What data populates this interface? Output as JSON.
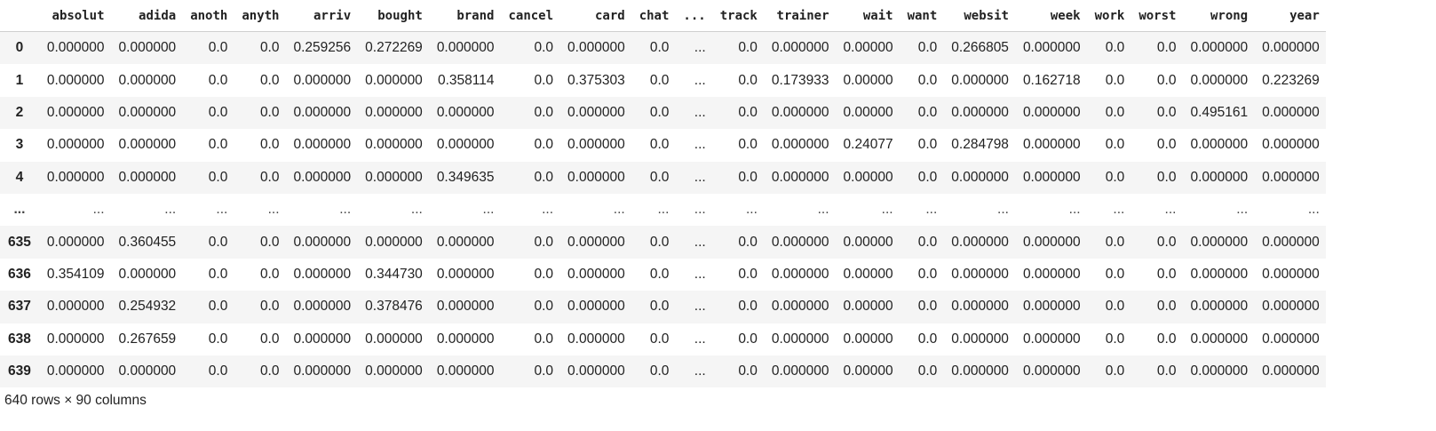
{
  "dataframe": {
    "columns": [
      "absolut",
      "adida",
      "anoth",
      "anyth",
      "arriv",
      "bought",
      "brand",
      "cancel",
      "card",
      "chat",
      "...",
      "track",
      "trainer",
      "wait",
      "want",
      "websit",
      "week",
      "work",
      "worst",
      "wrong",
      "year"
    ],
    "rows": [
      {
        "index": "0",
        "values": [
          "0.000000",
          "0.000000",
          "0.0",
          "0.0",
          "0.259256",
          "0.272269",
          "0.000000",
          "0.0",
          "0.000000",
          "0.0",
          "...",
          "0.0",
          "0.000000",
          "0.00000",
          "0.0",
          "0.266805",
          "0.000000",
          "0.0",
          "0.0",
          "0.000000",
          "0.000000"
        ]
      },
      {
        "index": "1",
        "values": [
          "0.000000",
          "0.000000",
          "0.0",
          "0.0",
          "0.000000",
          "0.000000",
          "0.358114",
          "0.0",
          "0.375303",
          "0.0",
          "...",
          "0.0",
          "0.173933",
          "0.00000",
          "0.0",
          "0.000000",
          "0.162718",
          "0.0",
          "0.0",
          "0.000000",
          "0.223269"
        ]
      },
      {
        "index": "2",
        "values": [
          "0.000000",
          "0.000000",
          "0.0",
          "0.0",
          "0.000000",
          "0.000000",
          "0.000000",
          "0.0",
          "0.000000",
          "0.0",
          "...",
          "0.0",
          "0.000000",
          "0.00000",
          "0.0",
          "0.000000",
          "0.000000",
          "0.0",
          "0.0",
          "0.495161",
          "0.000000"
        ]
      },
      {
        "index": "3",
        "values": [
          "0.000000",
          "0.000000",
          "0.0",
          "0.0",
          "0.000000",
          "0.000000",
          "0.000000",
          "0.0",
          "0.000000",
          "0.0",
          "...",
          "0.0",
          "0.000000",
          "0.24077",
          "0.0",
          "0.284798",
          "0.000000",
          "0.0",
          "0.0",
          "0.000000",
          "0.000000"
        ]
      },
      {
        "index": "4",
        "values": [
          "0.000000",
          "0.000000",
          "0.0",
          "0.0",
          "0.000000",
          "0.000000",
          "0.349635",
          "0.0",
          "0.000000",
          "0.0",
          "...",
          "0.0",
          "0.000000",
          "0.00000",
          "0.0",
          "0.000000",
          "0.000000",
          "0.0",
          "0.0",
          "0.000000",
          "0.000000"
        ]
      },
      {
        "index": "...",
        "values": [
          "...",
          "...",
          "...",
          "...",
          "...",
          "...",
          "...",
          "...",
          "...",
          "...",
          "...",
          "...",
          "...",
          "...",
          "...",
          "...",
          "...",
          "...",
          "...",
          "...",
          "..."
        ]
      },
      {
        "index": "635",
        "values": [
          "0.000000",
          "0.360455",
          "0.0",
          "0.0",
          "0.000000",
          "0.000000",
          "0.000000",
          "0.0",
          "0.000000",
          "0.0",
          "...",
          "0.0",
          "0.000000",
          "0.00000",
          "0.0",
          "0.000000",
          "0.000000",
          "0.0",
          "0.0",
          "0.000000",
          "0.000000"
        ]
      },
      {
        "index": "636",
        "values": [
          "0.354109",
          "0.000000",
          "0.0",
          "0.0",
          "0.000000",
          "0.344730",
          "0.000000",
          "0.0",
          "0.000000",
          "0.0",
          "...",
          "0.0",
          "0.000000",
          "0.00000",
          "0.0",
          "0.000000",
          "0.000000",
          "0.0",
          "0.0",
          "0.000000",
          "0.000000"
        ]
      },
      {
        "index": "637",
        "values": [
          "0.000000",
          "0.254932",
          "0.0",
          "0.0",
          "0.000000",
          "0.378476",
          "0.000000",
          "0.0",
          "0.000000",
          "0.0",
          "...",
          "0.0",
          "0.000000",
          "0.00000",
          "0.0",
          "0.000000",
          "0.000000",
          "0.0",
          "0.0",
          "0.000000",
          "0.000000"
        ]
      },
      {
        "index": "638",
        "values": [
          "0.000000",
          "0.267659",
          "0.0",
          "0.0",
          "0.000000",
          "0.000000",
          "0.000000",
          "0.0",
          "0.000000",
          "0.0",
          "...",
          "0.0",
          "0.000000",
          "0.00000",
          "0.0",
          "0.000000",
          "0.000000",
          "0.0",
          "0.0",
          "0.000000",
          "0.000000"
        ]
      },
      {
        "index": "639",
        "values": [
          "0.000000",
          "0.000000",
          "0.0",
          "0.0",
          "0.000000",
          "0.000000",
          "0.000000",
          "0.0",
          "0.000000",
          "0.0",
          "...",
          "0.0",
          "0.000000",
          "0.00000",
          "0.0",
          "0.000000",
          "0.000000",
          "0.0",
          "0.0",
          "0.000000",
          "0.000000"
        ]
      }
    ],
    "footer": "640 rows × 90 columns"
  },
  "colors": {
    "stripe": "#f5f5f5",
    "header_border": "#cfcfcf",
    "text": "#222222"
  }
}
